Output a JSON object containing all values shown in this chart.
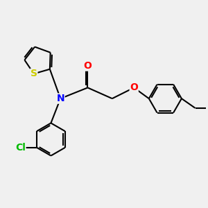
{
  "background_color": "#f0f0f0",
  "bond_color": "#000000",
  "bond_width": 1.5,
  "atom_labels": {
    "S": {
      "color": "#cccc00",
      "fontsize": 10
    },
    "N": {
      "color": "#0000ff",
      "fontsize": 10
    },
    "O": {
      "color": "#ff0000",
      "fontsize": 10
    },
    "Cl": {
      "color": "#00bb00",
      "fontsize": 10
    }
  },
  "figsize": [
    3.0,
    3.0
  ],
  "dpi": 100
}
